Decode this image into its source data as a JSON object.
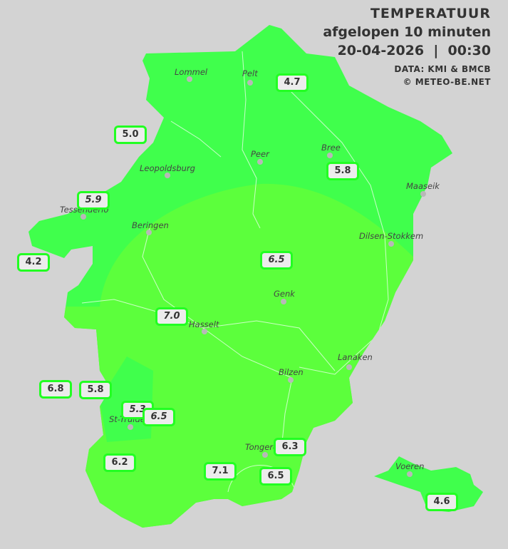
{
  "header": {
    "title": "TEMPERATUUR",
    "subtitle": "afgelopen 10 minuten",
    "datetime": "20-04-2026  |  00:30",
    "source": "DATA: KMI & BMCB",
    "copyright": "© METEO-BE.NET"
  },
  "colors": {
    "background": "#d3d3d3",
    "zone_cool": "#40ff4c",
    "zone_warm": "#5cff3c",
    "label_border": "#22ff22"
  },
  "cities": [
    {
      "name": "Lommel"
    },
    {
      "name": "Pelt"
    },
    {
      "name": "Peer"
    },
    {
      "name": "Bree"
    },
    {
      "name": "Leopoldsburg"
    },
    {
      "name": "Maaseik"
    },
    {
      "name": "Tessenderlo"
    },
    {
      "name": "Beringen"
    },
    {
      "name": "Dilsen-Stokkem"
    },
    {
      "name": "Genk"
    },
    {
      "name": "Hasselt"
    },
    {
      "name": "Lanaken"
    },
    {
      "name": "Bilzen"
    },
    {
      "name": "St-Truiden"
    },
    {
      "name": "Tongeren"
    },
    {
      "name": "Voeren"
    }
  ],
  "readings": [
    {
      "value": "4.7"
    },
    {
      "value": "5.0"
    },
    {
      "value": "5.8"
    },
    {
      "value": "5.9"
    },
    {
      "value": "4.2"
    },
    {
      "value": "6.5"
    },
    {
      "value": "7.0"
    },
    {
      "value": "6.8"
    },
    {
      "value": "5.8"
    },
    {
      "value": "5.3"
    },
    {
      "value": "6.5"
    },
    {
      "value": "6.2"
    },
    {
      "value": "7.1"
    },
    {
      "value": "6.3"
    },
    {
      "value": "6.5"
    },
    {
      "value": "4.6"
    }
  ]
}
